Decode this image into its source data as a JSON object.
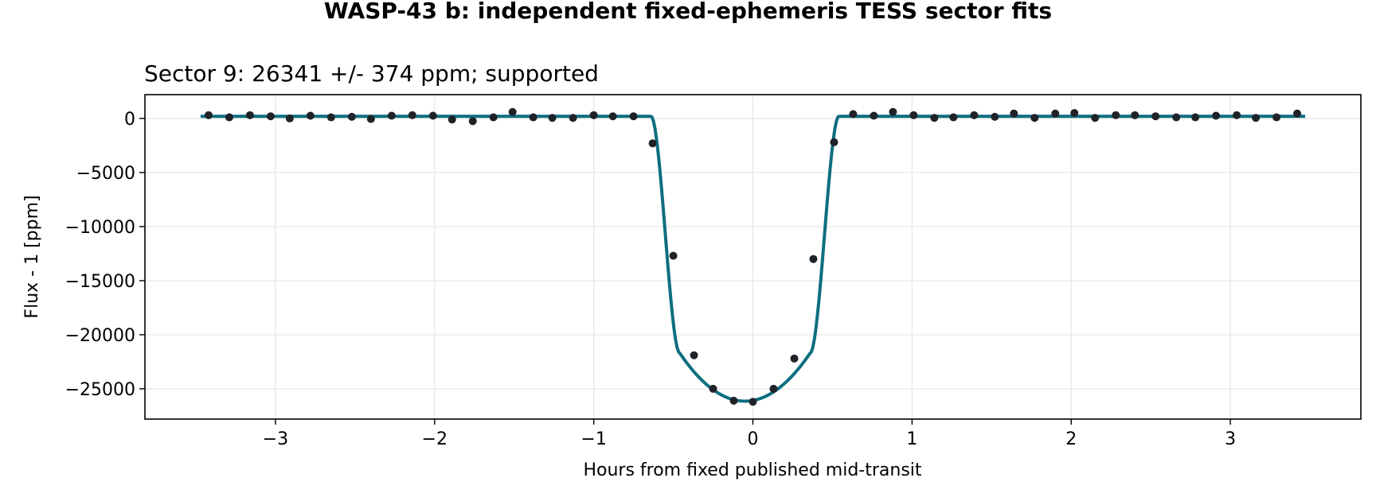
{
  "figure": {
    "suptitle": "WASP-43 b: independent fixed-ephemeris TESS sector fits"
  },
  "chart_data": {
    "type": "scatter",
    "title": "Sector 9: 26341 +/- 374 ppm; supported",
    "xlabel": "Hours from fixed published mid-transit",
    "ylabel": "Flux - 1 [ppm]",
    "xlim": [
      -3.82,
      3.82
    ],
    "ylim": [
      -27800,
      2200
    ],
    "xticks": [
      -3,
      -2,
      -1,
      0,
      1,
      2,
      3
    ],
    "xtick_labels": [
      "−3",
      "−2",
      "−1",
      "0",
      "1",
      "2",
      "3"
    ],
    "yticks": [
      0,
      -5000,
      -10000,
      -15000,
      -20000,
      -25000
    ],
    "ytick_labels": [
      "0",
      "−5000",
      "−10000",
      "−15000",
      "−20000",
      "−25000"
    ],
    "grid": true,
    "model": {
      "color": "#0e6e80",
      "baseline": 200,
      "depth": 26341,
      "center": -0.05,
      "flat_halfwidth": 0.41,
      "ingress": 0.18,
      "x_range": [
        -3.47,
        3.47
      ]
    },
    "points": {
      "color": "#1f2328",
      "x": [
        -3.42,
        -3.29,
        -3.16,
        -3.03,
        -2.91,
        -2.78,
        -2.65,
        -2.52,
        -2.4,
        -2.27,
        -2.14,
        -2.01,
        -1.89,
        -1.76,
        -1.63,
        -1.51,
        -1.38,
        -1.26,
        -1.13,
        -1.0,
        -0.88,
        -0.75,
        -0.63,
        -0.5,
        -0.37,
        -0.25,
        -0.12,
        0.0,
        0.13,
        0.26,
        0.38,
        0.51,
        0.63,
        0.76,
        0.88,
        1.01,
        1.14,
        1.26,
        1.39,
        1.52,
        1.64,
        1.77,
        1.9,
        2.02,
        2.15,
        2.28,
        2.4,
        2.53,
        2.66,
        2.78,
        2.91,
        3.04,
        3.16,
        3.29,
        3.42
      ],
      "y": [
        300,
        100,
        300,
        200,
        0,
        250,
        100,
        150,
        -50,
        250,
        300,
        250,
        -100,
        -250,
        100,
        600,
        100,
        50,
        50,
        300,
        200,
        200,
        -2300,
        -12700,
        -21900,
        -25000,
        -26100,
        -26200,
        -25000,
        -22200,
        -13000,
        -2200,
        400,
        250,
        600,
        300,
        50,
        100,
        300,
        150,
        450,
        50,
        450,
        500,
        50,
        300,
        300,
        200,
        100,
        100,
        250,
        300,
        50,
        100,
        450
      ]
    }
  }
}
